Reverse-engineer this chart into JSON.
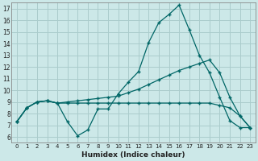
{
  "xlabel": "Humidex (Indice chaleur)",
  "background_color": "#cce8e8",
  "grid_color": "#aacccc",
  "line_color": "#006666",
  "xlim": [
    -0.5,
    23.5
  ],
  "ylim": [
    5.5,
    17.5
  ],
  "xticks": [
    0,
    1,
    2,
    3,
    4,
    5,
    6,
    7,
    8,
    9,
    10,
    11,
    12,
    13,
    14,
    15,
    16,
    17,
    18,
    19,
    20,
    21,
    22,
    23
  ],
  "yticks": [
    6,
    7,
    8,
    9,
    10,
    11,
    12,
    13,
    14,
    15,
    16,
    17
  ],
  "series": [
    [
      7.3,
      8.5,
      9.0,
      9.1,
      8.9,
      7.3,
      6.1,
      6.6,
      8.4,
      8.4,
      9.7,
      10.7,
      11.6,
      14.1,
      15.8,
      16.5,
      17.3,
      15.2,
      13.0,
      11.5,
      9.4,
      7.4,
      6.8,
      6.8
    ],
    [
      7.3,
      8.5,
      9.0,
      9.1,
      8.9,
      9.0,
      9.1,
      9.2,
      9.3,
      9.4,
      9.5,
      9.8,
      10.1,
      10.5,
      10.9,
      11.3,
      11.7,
      12.0,
      12.3,
      12.6,
      11.5,
      9.4,
      7.8,
      6.8
    ],
    [
      7.3,
      8.5,
      9.0,
      9.1,
      8.9,
      8.9,
      8.9,
      8.9,
      8.9,
      8.9,
      8.9,
      8.9,
      8.9,
      8.9,
      8.9,
      8.9,
      8.9,
      8.9,
      8.9,
      8.9,
      8.7,
      8.5,
      7.8,
      6.8
    ]
  ]
}
